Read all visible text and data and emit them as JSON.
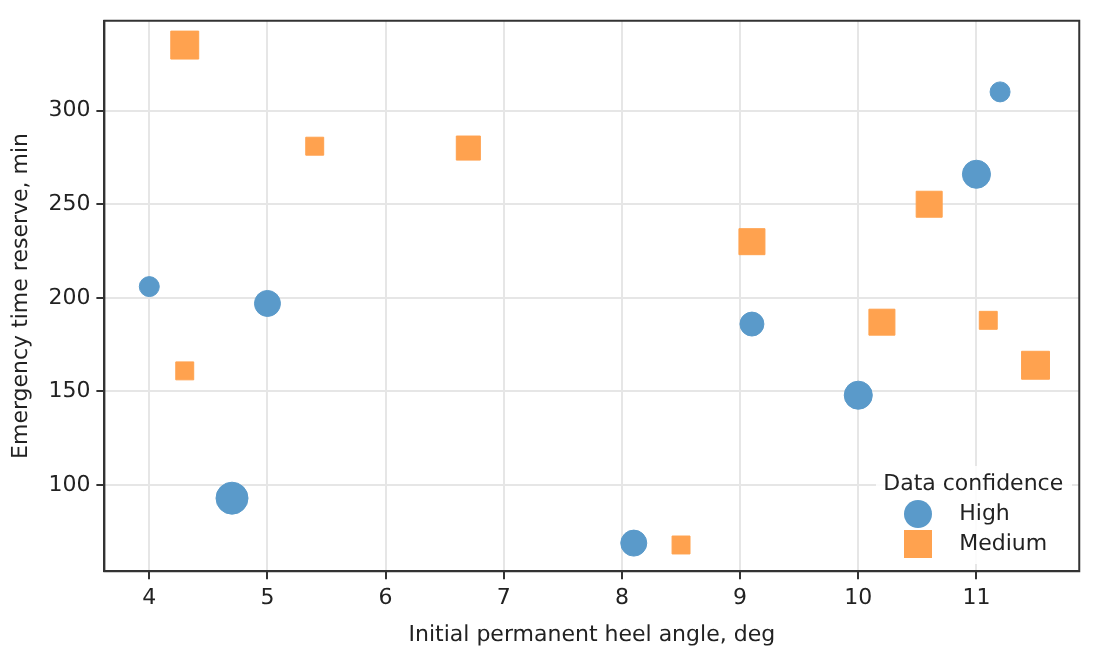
{
  "chart_data": {
    "type": "bubble",
    "xlabel": "Initial permanent heel angle, deg",
    "ylabel": "Emergency time reserve, min",
    "legend_title": "Data confidence",
    "xlim": [
      3.62,
      11.87
    ],
    "xticks": [
      4,
      5,
      6,
      7,
      8,
      9,
      10,
      11
    ],
    "ylim": [
      54,
      348
    ],
    "yticks": [
      100,
      150,
      200,
      250,
      300
    ],
    "grid": true,
    "legend": "bottom right",
    "series": [
      {
        "name": "High",
        "color": "#5a9aca",
        "marker": "circle",
        "x": [
          4.0,
          5.0,
          4.7,
          8.1,
          9.1,
          10.0,
          11.0,
          11.2
        ],
        "values": [
          206,
          197,
          93,
          69,
          186,
          148,
          266,
          310
        ],
        "sizes": [
          0.39,
          0.66,
          1,
          0.66,
          0.56,
          0.77,
          0.77,
          0.39
        ]
      },
      {
        "name": "Medium",
        "color": "#ffa24f",
        "marker": "square",
        "x": [
          4.3,
          4.3,
          5.4,
          6.7,
          8.5,
          9.1,
          10.2,
          10.6,
          11.1,
          11.5
        ],
        "values": [
          335,
          161,
          281,
          280,
          68,
          230,
          187,
          250,
          188,
          164
        ],
        "sizes": [
          0.97,
          0.4,
          0.4,
          0.72,
          0.4,
          0.84,
          0.84,
          0.84,
          0.4,
          0.97
        ]
      }
    ]
  }
}
